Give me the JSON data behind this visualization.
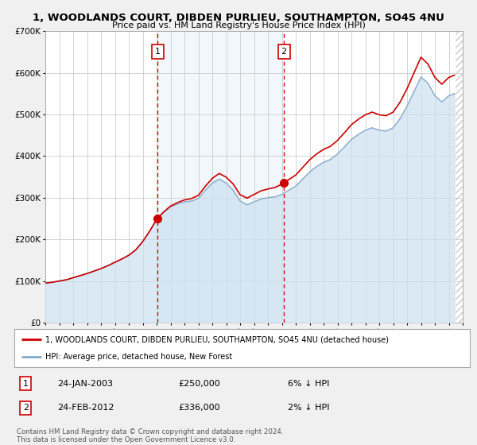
{
  "title": "1, WOODLANDS COURT, DIBDEN PURLIEU, SOUTHAMPTON, SO45 4NU",
  "subtitle": "Price paid vs. HM Land Registry's House Price Index (HPI)",
  "legend_line1": "1, WOODLANDS COURT, DIBDEN PURLIEU, SOUTHAMPTON, SO45 4NU (detached house)",
  "legend_line2": "HPI: Average price, detached house, New Forest",
  "sale1_date": "24-JAN-2003",
  "sale1_price": "£250,000",
  "sale1_hpi": "6% ↓ HPI",
  "sale1_year": 2003.07,
  "sale1_value": 250000,
  "sale2_date": "24-FEB-2012",
  "sale2_price": "£336,000",
  "sale2_hpi": "2% ↓ HPI",
  "sale2_year": 2012.15,
  "sale2_value": 336000,
  "price_color": "#cc0000",
  "hpi_color": "#88aacc",
  "hpi_fill_color": "#cce0f0",
  "vline_color": "#cc0000",
  "footer_text": "Contains HM Land Registry data © Crown copyright and database right 2024.\nThis data is licensed under the Open Government Licence v3.0.",
  "ylim": [
    0,
    700000
  ],
  "yticks": [
    0,
    100000,
    200000,
    300000,
    400000,
    500000,
    600000,
    700000
  ],
  "ytick_labels": [
    "£0",
    "£100K",
    "£200K",
    "£300K",
    "£400K",
    "£500K",
    "£600K",
    "£700K"
  ],
  "xlim_start": 1995,
  "xlim_end": 2025,
  "background_color": "#f0f0f0",
  "plot_bg_color": "#ffffff",
  "grid_color": "#cccccc",
  "hatch_start": 2024.5
}
